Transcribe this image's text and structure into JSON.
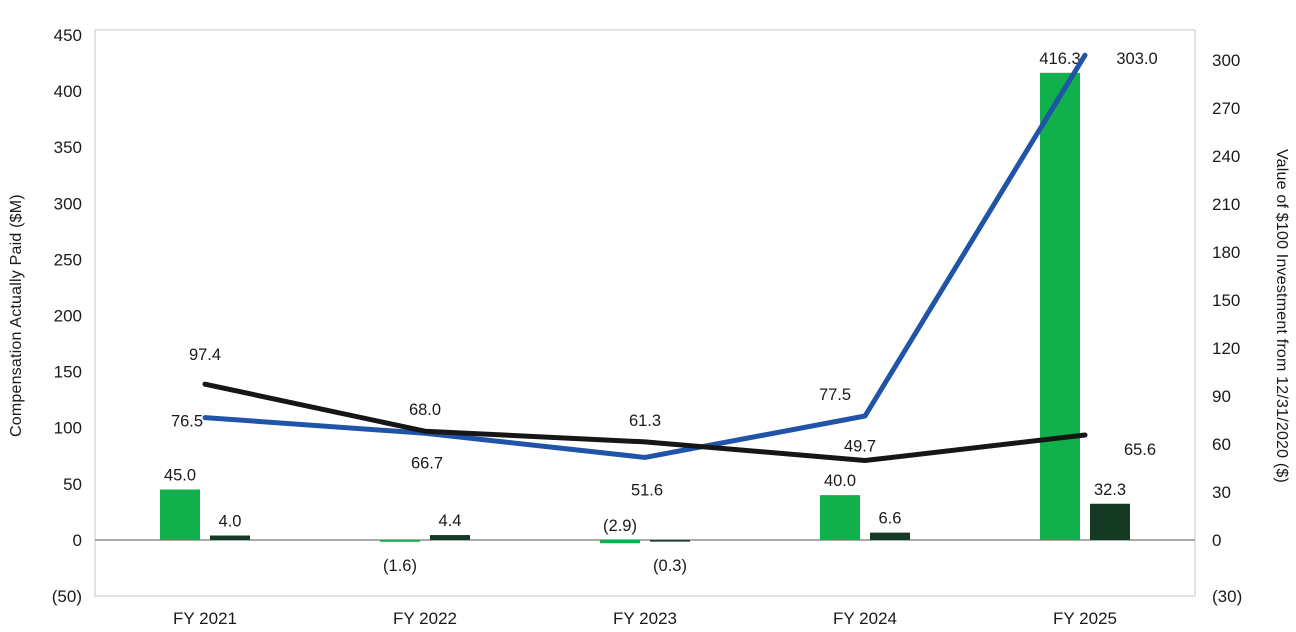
{
  "background_color": "#ffffff",
  "chart_data": {
    "type": "combo-bar-line",
    "title": "",
    "grid": false,
    "legend": "none",
    "categories": [
      "FY 2021",
      "FY 2022",
      "FY 2023",
      "FY 2024",
      "FY 2025"
    ],
    "left_axis": {
      "title": "Compensation Actually Paid ($M)",
      "min": -50,
      "max": 450,
      "step": 50,
      "tick_labels": [
        "(50)",
        "0",
        "50",
        "100",
        "150",
        "200",
        "250",
        "300",
        "350",
        "400",
        "450"
      ]
    },
    "right_axis": {
      "title": "Value of $100 Investment from 12/31/2020 ($)",
      "min": -30,
      "max": 300,
      "step": 30,
      "tick_labels": [
        "(30)",
        "0",
        "30",
        "60",
        "90",
        "120",
        "150",
        "180",
        "210",
        "240",
        "270",
        "300"
      ]
    },
    "bar_series": [
      {
        "name": "light-green-bars",
        "axis": "left",
        "color": "#10b04c",
        "values": [
          45.0,
          -1.6,
          -2.9,
          40.0,
          416.3
        ],
        "labels": [
          "45.0",
          "(1.6)",
          "(2.9)",
          "40.0",
          "416.3"
        ]
      },
      {
        "name": "dark-green-bars",
        "axis": "left",
        "color": "#143a24",
        "values": [
          4.0,
          4.4,
          -0.3,
          6.6,
          32.3
        ],
        "labels": [
          "4.0",
          "4.4",
          "(0.3)",
          "6.6",
          "32.3"
        ]
      }
    ],
    "line_series": [
      {
        "name": "blue-line",
        "axis": "right",
        "color": "#1f54a8",
        "values": [
          76.5,
          66.7,
          51.6,
          77.5,
          303.0
        ],
        "labels": [
          "76.5",
          "66.7",
          "51.6",
          "77.5",
          "303.0"
        ]
      },
      {
        "name": "black-line",
        "axis": "right",
        "color": "#161616",
        "values": [
          97.4,
          68.0,
          61.3,
          49.7,
          65.6
        ],
        "labels": [
          "97.4",
          "68.0",
          "61.3",
          "49.7",
          "65.6"
        ]
      }
    ]
  }
}
